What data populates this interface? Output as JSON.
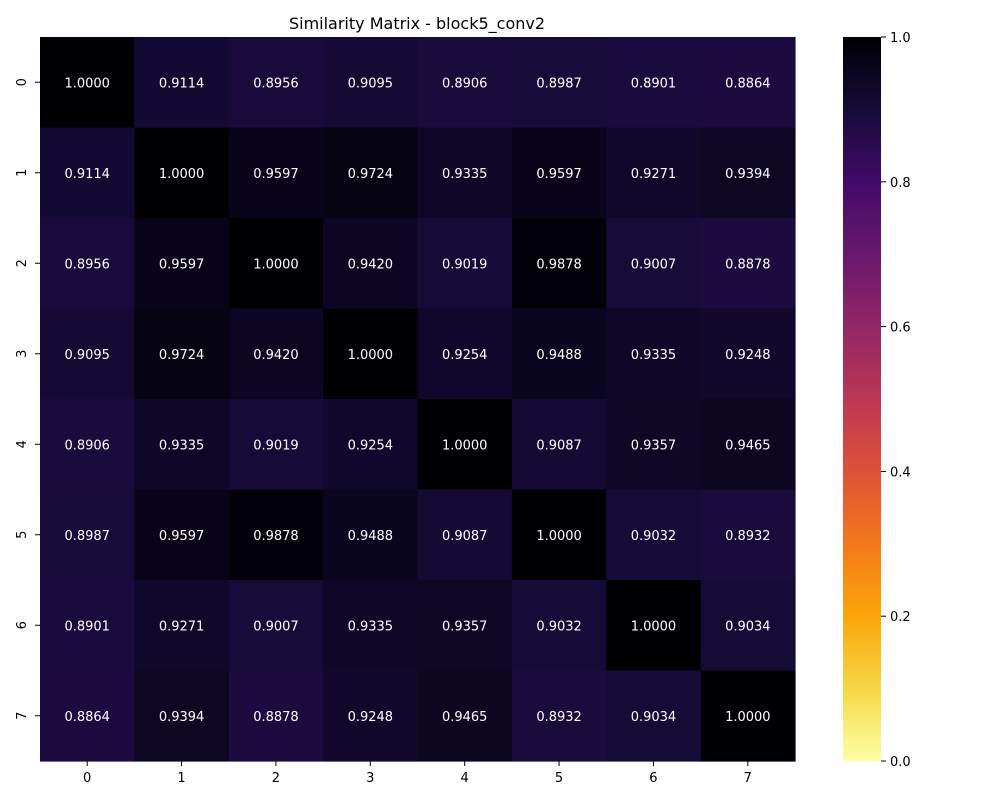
{
  "chart_data": {
    "type": "heatmap",
    "title": "Similarity Matrix - block5_conv2",
    "xlabel": "",
    "ylabel": "",
    "x_labels": [
      "0",
      "1",
      "2",
      "3",
      "4",
      "5",
      "6",
      "7"
    ],
    "y_labels": [
      "0",
      "1",
      "2",
      "3",
      "4",
      "5",
      "6",
      "7"
    ],
    "values": [
      [
        1.0,
        0.9114,
        0.8956,
        0.9095,
        0.8906,
        0.8987,
        0.8901,
        0.8864
      ],
      [
        0.9114,
        1.0,
        0.9597,
        0.9724,
        0.9335,
        0.9597,
        0.9271,
        0.9394
      ],
      [
        0.8956,
        0.9597,
        1.0,
        0.942,
        0.9019,
        0.9878,
        0.9007,
        0.8878
      ],
      [
        0.9095,
        0.9724,
        0.942,
        1.0,
        0.9254,
        0.9488,
        0.9335,
        0.9248
      ],
      [
        0.8906,
        0.9335,
        0.9019,
        0.9254,
        1.0,
        0.9087,
        0.9357,
        0.9465
      ],
      [
        0.8987,
        0.9597,
        0.9878,
        0.9488,
        0.9087,
        1.0,
        0.9032,
        0.8932
      ],
      [
        0.8901,
        0.9271,
        0.9007,
        0.9335,
        0.9357,
        0.9032,
        1.0,
        0.9034
      ],
      [
        0.8864,
        0.9394,
        0.8878,
        0.9248,
        0.9465,
        0.8932,
        0.9034,
        1.0
      ]
    ],
    "colormap": "inferno_r",
    "vmin": 0.0,
    "vmax": 1.0,
    "colorbar_ticks": [
      "0.0",
      "0.2",
      "0.4",
      "0.6",
      "0.8",
      "1.0"
    ],
    "annotation_color": "#ffffff"
  }
}
